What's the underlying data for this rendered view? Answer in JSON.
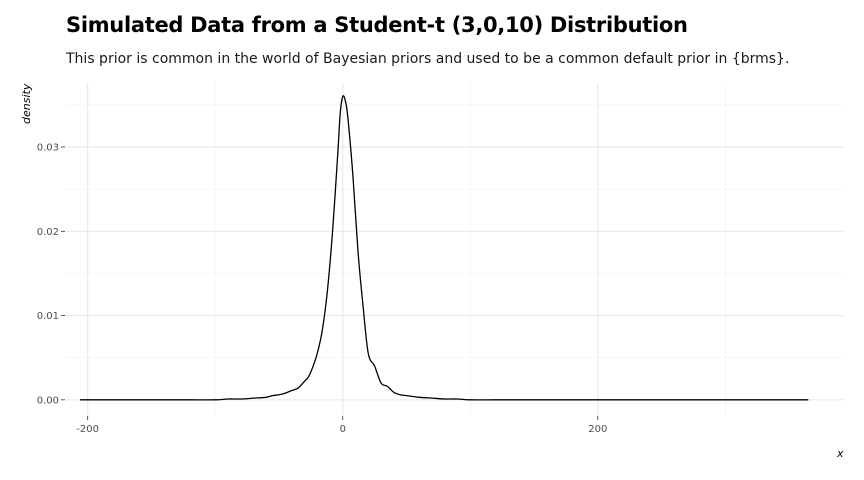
{
  "chart_data": {
    "type": "line",
    "title": "Simulated Data from a Student-t (3,0,10) Distribution",
    "subtitle": "This prior is common in the world of Bayesian priors and used to be a common default prior in {brms}.",
    "xlabel": "x",
    "ylabel": "density",
    "xlim": [
      -217,
      393
    ],
    "ylim": [
      -0.0018,
      0.0376
    ],
    "x_ticks": [
      "-200",
      "0",
      "200"
    ],
    "x_tick_values": [
      -200,
      0,
      200
    ],
    "y_ticks": [
      "0.00",
      "0.01",
      "0.02",
      "0.03"
    ],
    "y_tick_values": [
      0,
      0.01,
      0.02,
      0.03
    ],
    "grid": true,
    "series": [
      {
        "color": "#000000",
        "x": [
          -206,
          -180,
          -150,
          -120,
          -100,
          -90,
          -80,
          -70,
          -60,
          -55,
          -50,
          -45,
          -40,
          -35,
          -30,
          -27,
          -24,
          -20,
          -16,
          -12,
          -8,
          -4,
          -2,
          0,
          2,
          4,
          8,
          12,
          16,
          20,
          25,
          30,
          35,
          40,
          45,
          50,
          55,
          60,
          70,
          80,
          90,
          100,
          120,
          150,
          200,
          250,
          300,
          365
        ],
        "y": [
          0,
          0,
          0,
          0,
          0,
          0.0001,
          0.0001,
          0.0002,
          0.0003,
          0.0005,
          0.0006,
          0.0008,
          0.0011,
          0.0014,
          0.0022,
          0.0027,
          0.0037,
          0.0055,
          0.0083,
          0.013,
          0.02,
          0.029,
          0.034,
          0.036,
          0.0355,
          0.0335,
          0.0265,
          0.0175,
          0.011,
          0.0055,
          0.004,
          0.002,
          0.0016,
          0.0009,
          0.0006,
          0.0005,
          0.0004,
          0.0003,
          0.0002,
          0.0001,
          0.0001,
          0,
          0,
          0,
          0,
          0,
          0,
          0
        ]
      }
    ]
  }
}
